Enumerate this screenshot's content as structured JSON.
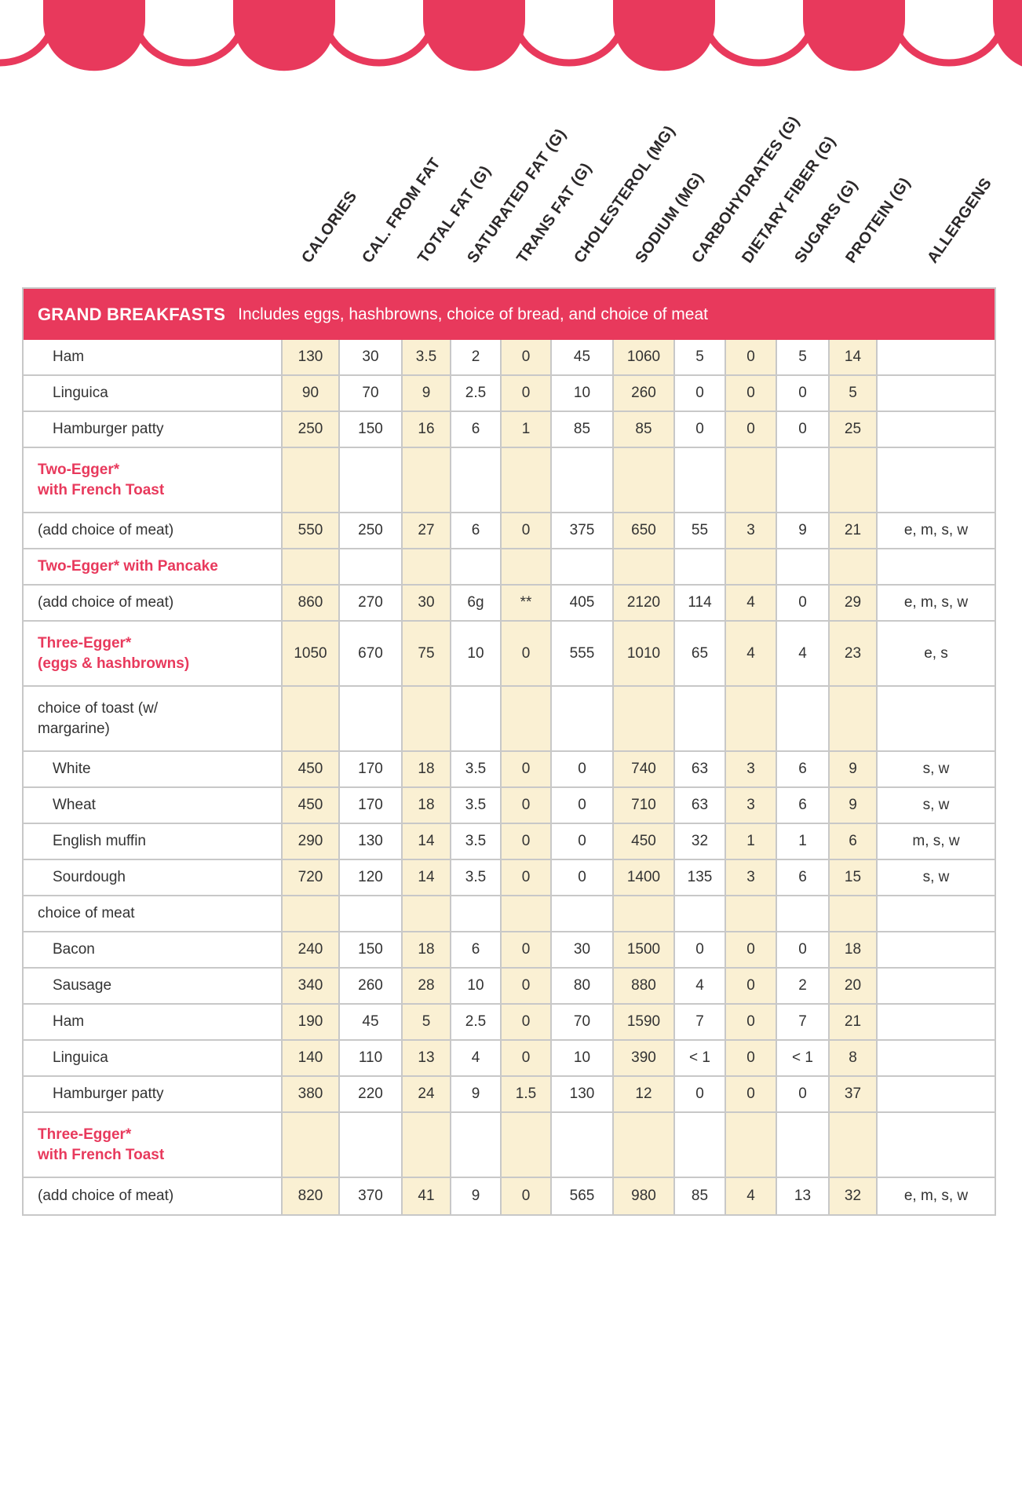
{
  "colors": {
    "accent": "#E8395C",
    "cream": "#FAF0D3",
    "grid": "#C8C8C8",
    "text": "#333333"
  },
  "columns": [
    "CALORIES",
    "CAL. FROM FAT",
    "TOTAL FAT (G)",
    "SATURATED FAT (G)",
    "TRANS FAT (G)",
    "CHOLESTEROL (MG)",
    "SODIUM (MG)",
    "CARBOHYDRATES (G)",
    "DIETARY FIBER (G)",
    "SUGARS (G)",
    "PROTEIN (G)",
    "ALLERGENS"
  ],
  "section": {
    "title": "GRAND BREAKFASTS",
    "subtitle": "Includes eggs, hashbrowns, choice of bread, and choice of meat"
  },
  "rows": [
    {
      "label": "Ham",
      "style": "item",
      "values": [
        "130",
        "30",
        "3.5",
        "2",
        "0",
        "45",
        "1060",
        "5",
        "0",
        "5",
        "14",
        ""
      ]
    },
    {
      "label": "Linguica",
      "style": "item",
      "values": [
        "90",
        "70",
        "9",
        "2.5",
        "0",
        "10",
        "260",
        "0",
        "0",
        "0",
        "5",
        ""
      ]
    },
    {
      "label": "Hamburger patty",
      "style": "item",
      "values": [
        "250",
        "150",
        "16",
        "6",
        "1",
        "85",
        "85",
        "0",
        "0",
        "0",
        "25",
        ""
      ]
    },
    {
      "label": "Two-Egger*\nwith French Toast",
      "style": "red",
      "values": [
        "",
        "",
        "",
        "",
        "",
        "",
        "",
        "",
        "",
        "",
        "",
        ""
      ]
    },
    {
      "label": "(add choice of meat)",
      "style": "plain",
      "values": [
        "550",
        "250",
        "27",
        "6",
        "0",
        "375",
        "650",
        "55",
        "3",
        "9",
        "21",
        "e, m, s, w"
      ]
    },
    {
      "label": "Two-Egger* with Pancake",
      "style": "red",
      "values": [
        "",
        "",
        "",
        "",
        "",
        "",
        "",
        "",
        "",
        "",
        "",
        ""
      ]
    },
    {
      "label": "(add choice of meat)",
      "style": "plain",
      "values": [
        "860",
        "270",
        "30",
        "6g",
        "**",
        "405",
        "2120",
        "114",
        "4",
        "0",
        "29",
        "e, m, s, w"
      ]
    },
    {
      "label": "Three-Egger*\n(eggs & hashbrowns)",
      "style": "red",
      "values": [
        "1050",
        "670",
        "75",
        "10",
        "0",
        "555",
        "1010",
        "65",
        "4",
        "4",
        "23",
        "e, s"
      ]
    },
    {
      "label": "choice of toast (w/\nmargarine)",
      "style": "plain",
      "values": [
        "",
        "",
        "",
        "",
        "",
        "",
        "",
        "",
        "",
        "",
        "",
        ""
      ]
    },
    {
      "label": "White",
      "style": "item",
      "values": [
        "450",
        "170",
        "18",
        "3.5",
        "0",
        "0",
        "740",
        "63",
        "3",
        "6",
        "9",
        "s, w"
      ]
    },
    {
      "label": "Wheat",
      "style": "item",
      "values": [
        "450",
        "170",
        "18",
        "3.5",
        "0",
        "0",
        "710",
        "63",
        "3",
        "6",
        "9",
        "s, w"
      ]
    },
    {
      "label": "English muffin",
      "style": "item",
      "values": [
        "290",
        "130",
        "14",
        "3.5",
        "0",
        "0",
        "450",
        "32",
        "1",
        "1",
        "6",
        "m, s, w"
      ]
    },
    {
      "label": "Sourdough",
      "style": "item",
      "values": [
        "720",
        "120",
        "14",
        "3.5",
        "0",
        "0",
        "1400",
        "135",
        "3",
        "6",
        "15",
        "s, w"
      ]
    },
    {
      "label": "choice of meat",
      "style": "plain",
      "values": [
        "",
        "",
        "",
        "",
        "",
        "",
        "",
        "",
        "",
        "",
        "",
        ""
      ]
    },
    {
      "label": "Bacon",
      "style": "item",
      "values": [
        "240",
        "150",
        "18",
        "6",
        "0",
        "30",
        "1500",
        "0",
        "0",
        "0",
        "18",
        ""
      ]
    },
    {
      "label": "Sausage",
      "style": "item",
      "values": [
        "340",
        "260",
        "28",
        "10",
        "0",
        "80",
        "880",
        "4",
        "0",
        "2",
        "20",
        ""
      ]
    },
    {
      "label": "Ham",
      "style": "item",
      "values": [
        "190",
        "45",
        "5",
        "2.5",
        "0",
        "70",
        "1590",
        "7",
        "0",
        "7",
        "21",
        ""
      ]
    },
    {
      "label": "Linguica",
      "style": "item",
      "values": [
        "140",
        "110",
        "13",
        "4",
        "0",
        "10",
        "390",
        "< 1",
        "0",
        "< 1",
        "8",
        ""
      ]
    },
    {
      "label": "Hamburger patty",
      "style": "item",
      "values": [
        "380",
        "220",
        "24",
        "9",
        "1.5",
        "130",
        "12",
        "0",
        "0",
        "0",
        "37",
        ""
      ]
    },
    {
      "label": "Three-Egger*\nwith French Toast",
      "style": "red",
      "values": [
        "",
        "",
        "",
        "",
        "",
        "",
        "",
        "",
        "",
        "",
        "",
        ""
      ]
    },
    {
      "label": "(add choice of meat)",
      "style": "plain",
      "values": [
        "820",
        "370",
        "41",
        "9",
        "0",
        "565",
        "980",
        "85",
        "4",
        "13",
        "32",
        "e, m, s, w"
      ]
    }
  ]
}
